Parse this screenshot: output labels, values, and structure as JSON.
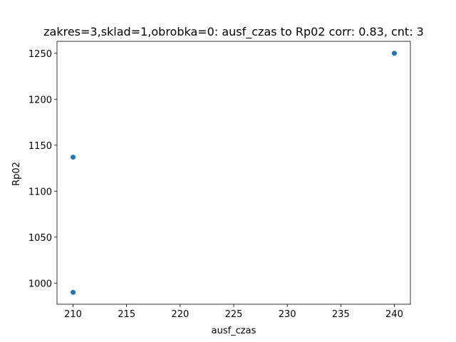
{
  "chart_data": {
    "type": "scatter",
    "title": "zakres=3,sklad=1,obrobka=0: ausf_czas to Rp02 corr: 0.83, cnt: 3",
    "xlabel": "ausf_czas",
    "ylabel": "Rp02",
    "xlim": [
      208.5,
      241.5
    ],
    "ylim": [
      977,
      1263
    ],
    "xticks": [
      210,
      215,
      220,
      225,
      230,
      235,
      240
    ],
    "yticks": [
      1000,
      1050,
      1100,
      1150,
      1200,
      1250
    ],
    "grid": false,
    "legend": "none",
    "marker_color": "#1f77b4",
    "points": [
      {
        "x": 210,
        "y": 990
      },
      {
        "x": 210,
        "y": 1137
      },
      {
        "x": 240,
        "y": 1250
      }
    ]
  }
}
